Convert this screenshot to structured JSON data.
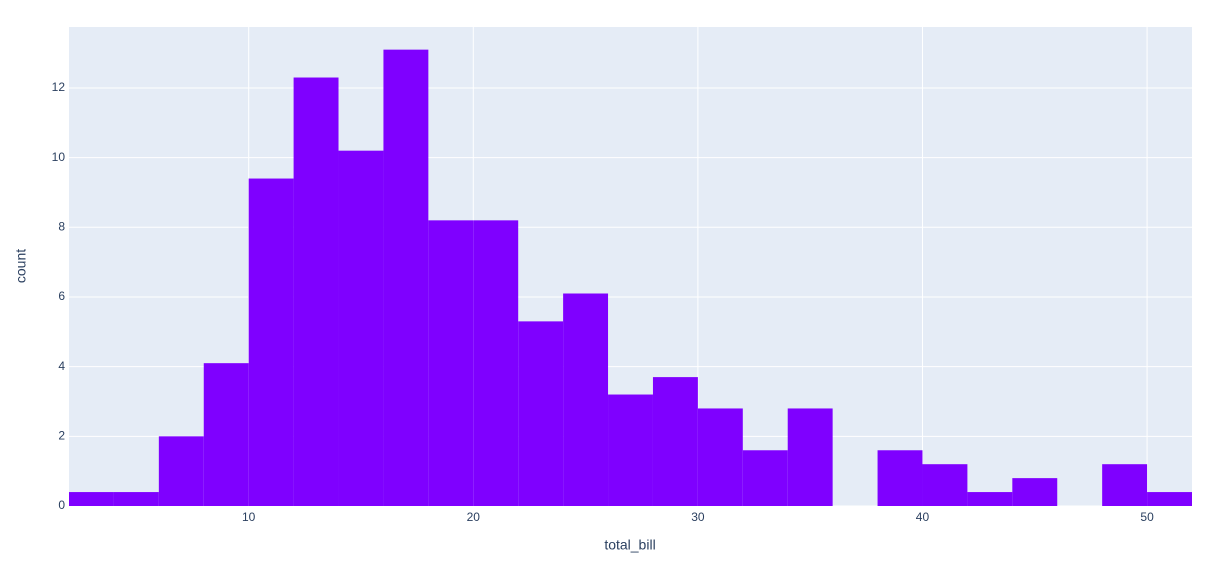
{
  "chart_data": {
    "type": "histogram",
    "x_label": "total_bill",
    "y_label": "count",
    "bins": [
      2,
      4,
      6,
      8,
      10,
      12,
      14,
      16,
      18,
      20,
      22,
      24,
      26,
      28,
      30,
      32,
      34,
      36,
      38,
      40,
      42,
      44,
      46,
      48,
      50,
      52
    ],
    "values": [
      0.4,
      0.4,
      2.0,
      4.1,
      9.4,
      12.3,
      10.2,
      13.1,
      8.2,
      8.2,
      5.3,
      6.1,
      3.2,
      3.7,
      2.8,
      1.6,
      2.8,
      0,
      1.6,
      1.2,
      0.4,
      0.8,
      0,
      1.2,
      0.4
    ],
    "color": "#7f00ff",
    "xlim": [
      2,
      52
    ],
    "ylim": [
      0,
      13.75
    ],
    "xticks": [
      10,
      20,
      30,
      40,
      50
    ],
    "yticks": [
      0,
      2,
      4,
      6,
      8,
      10,
      12
    ],
    "grid": true
  }
}
